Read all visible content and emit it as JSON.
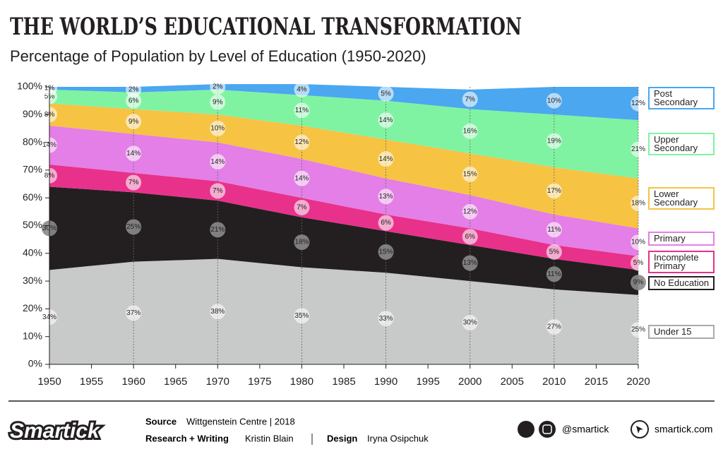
{
  "chart_data": {
    "type": "stacked-area",
    "title": "THE WORLD’S EDUCATIONAL TRANSFORMATION",
    "subtitle": "Percentage of Population by Level of Education (1950-2020)",
    "x": [
      1950,
      1960,
      1970,
      1980,
      1990,
      2000,
      2010,
      2020
    ],
    "xlim": [
      1950,
      2020
    ],
    "xticks": [
      1950,
      1955,
      1960,
      1965,
      1970,
      1975,
      1980,
      1985,
      1990,
      1995,
      2000,
      2005,
      2010,
      2015,
      2020
    ],
    "ylim": [
      0,
      100
    ],
    "yticks": [
      {
        "value": 0,
        "label": "0%"
      },
      {
        "value": 10,
        "label": "10%"
      },
      {
        "value": 20,
        "label": "20%"
      },
      {
        "value": 30,
        "label": "30%"
      },
      {
        "value": 40,
        "label": "40%"
      },
      {
        "value": 50,
        "label": "50%"
      },
      {
        "value": 60,
        "label": "60%"
      },
      {
        "value": 70,
        "label": "70%"
      },
      {
        "value": 80,
        "label": "80%"
      },
      {
        "value": 90,
        "label": "90%"
      },
      {
        "value": 100,
        "label": "100%"
      }
    ],
    "series": [
      {
        "name": "Under 15",
        "color": "#c8c9c9",
        "values": [
          34,
          37,
          38,
          35,
          33,
          30,
          27,
          25
        ],
        "value_labels": [
          "34%",
          "37%",
          "38%",
          "35%",
          "33%",
          "30%",
          "27%",
          "25%"
        ]
      },
      {
        "name": "No Education",
        "color": "#231f20",
        "values": [
          30,
          25,
          21,
          18,
          15,
          13,
          11,
          9
        ],
        "value_labels": [
          "30%",
          "25%",
          "21%",
          "18%",
          "15%",
          "13%",
          "11%",
          "9%"
        ]
      },
      {
        "name": "Incomplete Primary",
        "color": "#e8318b",
        "values": [
          8,
          7,
          7,
          7,
          6,
          6,
          5,
          5
        ],
        "value_labels": [
          "8%",
          "7%",
          "7%",
          "7%",
          "6%",
          "6%",
          "5%",
          "5%"
        ]
      },
      {
        "name": "Primary",
        "color": "#e37fe6",
        "values": [
          14,
          14,
          14,
          14,
          13,
          12,
          11,
          10
        ],
        "value_labels": [
          "14%",
          "14%",
          "14%",
          "14%",
          "13%",
          "12%",
          "11%",
          "10%"
        ]
      },
      {
        "name": "Lower Secondary",
        "color": "#f6c343",
        "values": [
          8,
          9,
          10,
          12,
          14,
          15,
          17,
          18
        ],
        "value_labels": [
          "8%",
          "9%",
          "10%",
          "12%",
          "14%",
          "15%",
          "17%",
          "18%"
        ]
      },
      {
        "name": "Upper Secondary",
        "color": "#80f3a2",
        "values": [
          5,
          6,
          9,
          11,
          14,
          16,
          19,
          21
        ],
        "value_labels": [
          "5%",
          "6%",
          "9%",
          "11%",
          "14%",
          "16%",
          "19%",
          "21%"
        ]
      },
      {
        "name": "Post Secondary",
        "color": "#4aa7f0",
        "values": [
          1,
          2,
          2,
          4,
          5,
          7,
          10,
          12
        ],
        "value_labels": [
          "1%",
          "2%",
          "2%",
          "4%",
          "5%",
          "7%",
          "10%",
          "12%"
        ]
      }
    ]
  },
  "footer": {
    "logo": "Smartick",
    "source_label": "Source",
    "source": "Wittgenstein Centre | 2018",
    "research_label": "Research + Writing",
    "research": "Kristin Blain",
    "design_label": "Design",
    "design": "Iryna Osipchuk",
    "social": "@smartick",
    "website": "smartick.com"
  }
}
